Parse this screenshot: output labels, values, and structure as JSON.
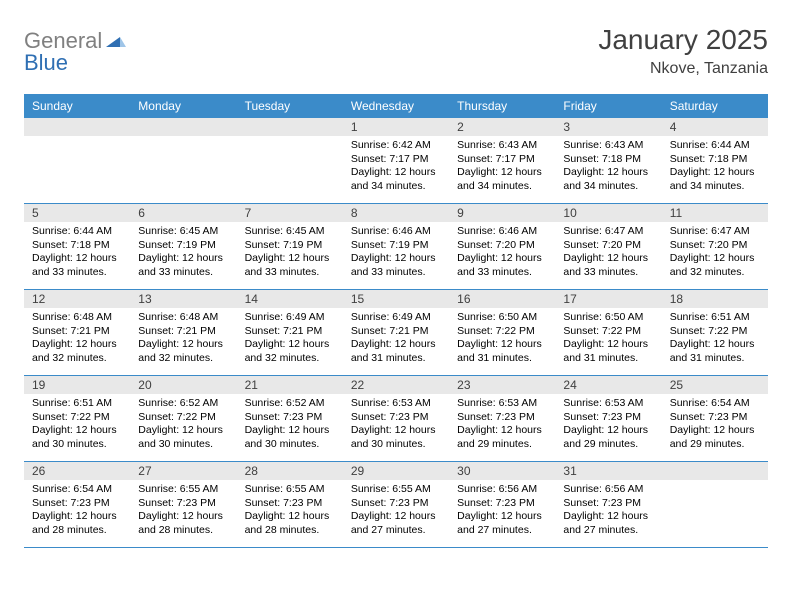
{
  "logo": {
    "text1": "General",
    "text2": "Blue"
  },
  "title": "January 2025",
  "subtitle": "Nkove, Tanzania",
  "colors": {
    "header_bg": "#3b8bc9",
    "daynum_bg": "#e8e8e8",
    "logo_gray": "#808080",
    "logo_blue": "#2f6fb3",
    "text_dark": "#404040",
    "border": "#3b8bc9",
    "bg": "#ffffff"
  },
  "day_headers": [
    "Sunday",
    "Monday",
    "Tuesday",
    "Wednesday",
    "Thursday",
    "Friday",
    "Saturday"
  ],
  "weeks": [
    [
      {
        "n": "",
        "empty": true
      },
      {
        "n": "",
        "empty": true
      },
      {
        "n": "",
        "empty": true
      },
      {
        "n": "1",
        "sunrise": "Sunrise: 6:42 AM",
        "sunset": "Sunset: 7:17 PM",
        "d1": "Daylight: 12 hours",
        "d2": "and 34 minutes."
      },
      {
        "n": "2",
        "sunrise": "Sunrise: 6:43 AM",
        "sunset": "Sunset: 7:17 PM",
        "d1": "Daylight: 12 hours",
        "d2": "and 34 minutes."
      },
      {
        "n": "3",
        "sunrise": "Sunrise: 6:43 AM",
        "sunset": "Sunset: 7:18 PM",
        "d1": "Daylight: 12 hours",
        "d2": "and 34 minutes."
      },
      {
        "n": "4",
        "sunrise": "Sunrise: 6:44 AM",
        "sunset": "Sunset: 7:18 PM",
        "d1": "Daylight: 12 hours",
        "d2": "and 34 minutes."
      }
    ],
    [
      {
        "n": "5",
        "sunrise": "Sunrise: 6:44 AM",
        "sunset": "Sunset: 7:18 PM",
        "d1": "Daylight: 12 hours",
        "d2": "and 33 minutes."
      },
      {
        "n": "6",
        "sunrise": "Sunrise: 6:45 AM",
        "sunset": "Sunset: 7:19 PM",
        "d1": "Daylight: 12 hours",
        "d2": "and 33 minutes."
      },
      {
        "n": "7",
        "sunrise": "Sunrise: 6:45 AM",
        "sunset": "Sunset: 7:19 PM",
        "d1": "Daylight: 12 hours",
        "d2": "and 33 minutes."
      },
      {
        "n": "8",
        "sunrise": "Sunrise: 6:46 AM",
        "sunset": "Sunset: 7:19 PM",
        "d1": "Daylight: 12 hours",
        "d2": "and 33 minutes."
      },
      {
        "n": "9",
        "sunrise": "Sunrise: 6:46 AM",
        "sunset": "Sunset: 7:20 PM",
        "d1": "Daylight: 12 hours",
        "d2": "and 33 minutes."
      },
      {
        "n": "10",
        "sunrise": "Sunrise: 6:47 AM",
        "sunset": "Sunset: 7:20 PM",
        "d1": "Daylight: 12 hours",
        "d2": "and 33 minutes."
      },
      {
        "n": "11",
        "sunrise": "Sunrise: 6:47 AM",
        "sunset": "Sunset: 7:20 PM",
        "d1": "Daylight: 12 hours",
        "d2": "and 32 minutes."
      }
    ],
    [
      {
        "n": "12",
        "sunrise": "Sunrise: 6:48 AM",
        "sunset": "Sunset: 7:21 PM",
        "d1": "Daylight: 12 hours",
        "d2": "and 32 minutes."
      },
      {
        "n": "13",
        "sunrise": "Sunrise: 6:48 AM",
        "sunset": "Sunset: 7:21 PM",
        "d1": "Daylight: 12 hours",
        "d2": "and 32 minutes."
      },
      {
        "n": "14",
        "sunrise": "Sunrise: 6:49 AM",
        "sunset": "Sunset: 7:21 PM",
        "d1": "Daylight: 12 hours",
        "d2": "and 32 minutes."
      },
      {
        "n": "15",
        "sunrise": "Sunrise: 6:49 AM",
        "sunset": "Sunset: 7:21 PM",
        "d1": "Daylight: 12 hours",
        "d2": "and 31 minutes."
      },
      {
        "n": "16",
        "sunrise": "Sunrise: 6:50 AM",
        "sunset": "Sunset: 7:22 PM",
        "d1": "Daylight: 12 hours",
        "d2": "and 31 minutes."
      },
      {
        "n": "17",
        "sunrise": "Sunrise: 6:50 AM",
        "sunset": "Sunset: 7:22 PM",
        "d1": "Daylight: 12 hours",
        "d2": "and 31 minutes."
      },
      {
        "n": "18",
        "sunrise": "Sunrise: 6:51 AM",
        "sunset": "Sunset: 7:22 PM",
        "d1": "Daylight: 12 hours",
        "d2": "and 31 minutes."
      }
    ],
    [
      {
        "n": "19",
        "sunrise": "Sunrise: 6:51 AM",
        "sunset": "Sunset: 7:22 PM",
        "d1": "Daylight: 12 hours",
        "d2": "and 30 minutes."
      },
      {
        "n": "20",
        "sunrise": "Sunrise: 6:52 AM",
        "sunset": "Sunset: 7:22 PM",
        "d1": "Daylight: 12 hours",
        "d2": "and 30 minutes."
      },
      {
        "n": "21",
        "sunrise": "Sunrise: 6:52 AM",
        "sunset": "Sunset: 7:23 PM",
        "d1": "Daylight: 12 hours",
        "d2": "and 30 minutes."
      },
      {
        "n": "22",
        "sunrise": "Sunrise: 6:53 AM",
        "sunset": "Sunset: 7:23 PM",
        "d1": "Daylight: 12 hours",
        "d2": "and 30 minutes."
      },
      {
        "n": "23",
        "sunrise": "Sunrise: 6:53 AM",
        "sunset": "Sunset: 7:23 PM",
        "d1": "Daylight: 12 hours",
        "d2": "and 29 minutes."
      },
      {
        "n": "24",
        "sunrise": "Sunrise: 6:53 AM",
        "sunset": "Sunset: 7:23 PM",
        "d1": "Daylight: 12 hours",
        "d2": "and 29 minutes."
      },
      {
        "n": "25",
        "sunrise": "Sunrise: 6:54 AM",
        "sunset": "Sunset: 7:23 PM",
        "d1": "Daylight: 12 hours",
        "d2": "and 29 minutes."
      }
    ],
    [
      {
        "n": "26",
        "sunrise": "Sunrise: 6:54 AM",
        "sunset": "Sunset: 7:23 PM",
        "d1": "Daylight: 12 hours",
        "d2": "and 28 minutes."
      },
      {
        "n": "27",
        "sunrise": "Sunrise: 6:55 AM",
        "sunset": "Sunset: 7:23 PM",
        "d1": "Daylight: 12 hours",
        "d2": "and 28 minutes."
      },
      {
        "n": "28",
        "sunrise": "Sunrise: 6:55 AM",
        "sunset": "Sunset: 7:23 PM",
        "d1": "Daylight: 12 hours",
        "d2": "and 28 minutes."
      },
      {
        "n": "29",
        "sunrise": "Sunrise: 6:55 AM",
        "sunset": "Sunset: 7:23 PM",
        "d1": "Daylight: 12 hours",
        "d2": "and 27 minutes."
      },
      {
        "n": "30",
        "sunrise": "Sunrise: 6:56 AM",
        "sunset": "Sunset: 7:23 PM",
        "d1": "Daylight: 12 hours",
        "d2": "and 27 minutes."
      },
      {
        "n": "31",
        "sunrise": "Sunrise: 6:56 AM",
        "sunset": "Sunset: 7:23 PM",
        "d1": "Daylight: 12 hours",
        "d2": "and 27 minutes."
      },
      {
        "n": "",
        "empty": true
      }
    ]
  ]
}
